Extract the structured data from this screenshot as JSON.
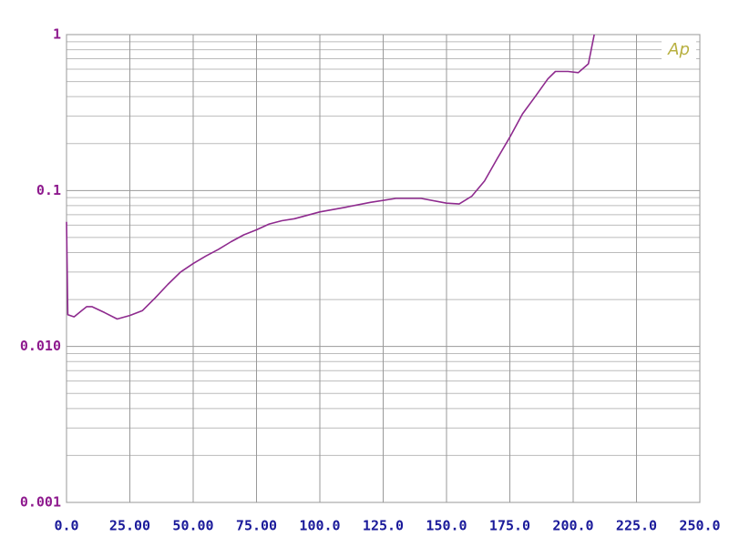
{
  "chart_data": {
    "type": "line",
    "logo": "Ap",
    "yscale": "log",
    "grid": true,
    "xlim": [
      0,
      250
    ],
    "xticks": [
      {
        "value": 0,
        "label": "0.0"
      },
      {
        "value": 25,
        "label": "25.00"
      },
      {
        "value": 50,
        "label": "50.00"
      },
      {
        "value": 75,
        "label": "75.00"
      },
      {
        "value": 100,
        "label": "100.0"
      },
      {
        "value": 125,
        "label": "125.0"
      },
      {
        "value": 150,
        "label": "150.0"
      },
      {
        "value": 175,
        "label": "175.0"
      },
      {
        "value": 200,
        "label": "200.0"
      },
      {
        "value": 225,
        "label": "225.0"
      },
      {
        "value": 250,
        "label": "250.0"
      }
    ],
    "ylim": [
      0.001,
      1
    ],
    "yticks": [
      {
        "value": 1,
        "label": "1"
      },
      {
        "value": 0.1,
        "label": "0.1"
      },
      {
        "value": 0.01,
        "label": "0.010"
      },
      0.001
    ],
    "x": [
      0,
      0.5,
      3,
      6,
      8,
      10,
      15,
      20,
      25,
      30,
      35,
      40,
      45,
      50,
      55,
      60,
      65,
      70,
      75,
      80,
      85,
      90,
      100,
      110,
      120,
      130,
      140,
      150,
      155,
      160,
      165,
      170,
      175,
      180,
      185,
      190,
      193,
      198,
      202,
      206,
      208.3
    ],
    "series": [
      {
        "color": "#8e2a8e",
        "values": [
          0.063,
          0.016,
          0.0155,
          0.017,
          0.018,
          0.018,
          0.0165,
          0.015,
          0.0158,
          0.017,
          0.0205,
          0.025,
          0.03,
          0.034,
          0.038,
          0.042,
          0.047,
          0.052,
          0.056,
          0.061,
          0.064,
          0.066,
          0.073,
          0.078,
          0.084,
          0.089,
          0.089,
          0.083,
          0.082,
          0.092,
          0.115,
          0.16,
          0.22,
          0.31,
          0.4,
          0.52,
          0.58,
          0.58,
          0.57,
          0.65,
          1.0
        ]
      }
    ]
  }
}
